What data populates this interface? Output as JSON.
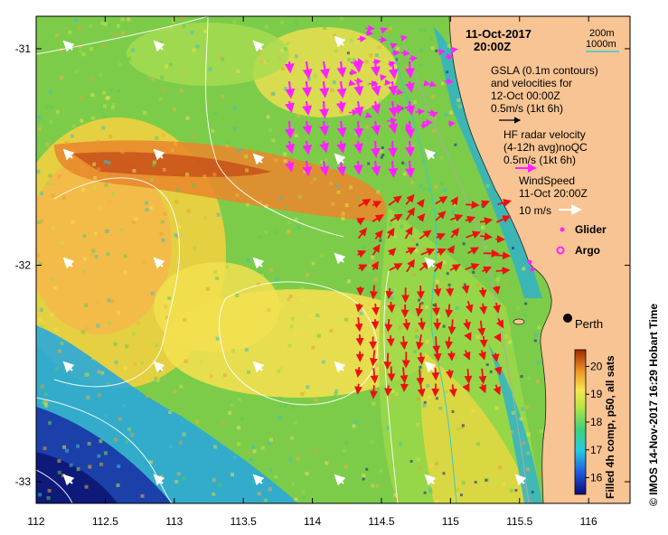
{
  "map": {
    "date_line1": "11-Oct-2017",
    "date_line2": "20:00Z",
    "isobath_labels": [
      "200m",
      "1000m"
    ],
    "gsla_block": [
      "GSLA (0.1m contours)",
      "and velocities for",
      "12-Oct 00:00Z",
      "0.5m/s (1kt 6h)"
    ],
    "hf_block": [
      "HF radar velocity",
      "(4-12h avg)noQC",
      "0.5m/s (1kt 6h)"
    ],
    "wind_block": [
      "WindSpeed",
      "11-Oct 20:00Z",
      "10 m/s"
    ],
    "legend_glider": "Glider",
    "legend_argo": "Argo",
    "city_label": "Perth",
    "colorbar_title": "Filled 4h comp, p50, all sats",
    "colorbar_ticks": [
      "16",
      "17",
      "18",
      "19",
      "20"
    ],
    "colorbar_range": [
      15.4,
      20.6
    ],
    "footer_vertical": "© IMOS 14-Nov-2017 16:29 Hobart Time",
    "x_ticks": [
      "112",
      "112.5",
      "113",
      "113.5",
      "114",
      "114.5",
      "115",
      "115.5",
      "116"
    ],
    "y_ticks": [
      "-31",
      "-32",
      "-33"
    ],
    "lon_range": [
      112,
      116.3
    ],
    "lat_range": [
      -30.85,
      -33.1
    ]
  },
  "colors": {
    "land": "#f8c493",
    "glider": "#ff22ff",
    "hf_radar": "#ee1111",
    "gsla_vectors": "#ff22ff",
    "wind": "#ffffff",
    "isobath_200": "#aaaaaa",
    "isobath_1000": "#33cccc"
  }
}
